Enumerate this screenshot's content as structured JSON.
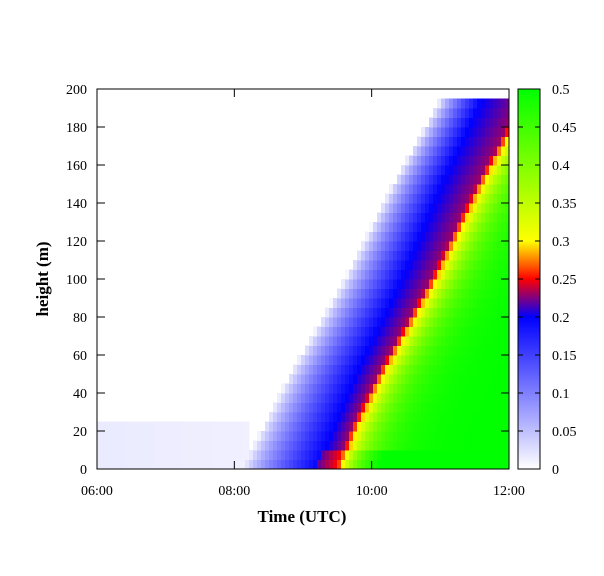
{
  "chart_data": {
    "type": "heatmap",
    "title": "",
    "xlabel": "Time (UTC)",
    "ylabel": "height (m)",
    "x": {
      "range": [
        6,
        12
      ],
      "ticks": [
        6,
        8,
        10,
        12
      ],
      "tick_labels": [
        "06:00",
        "08:00",
        "10:00",
        "12:00"
      ]
    },
    "y": {
      "range": [
        0,
        200
      ],
      "ticks": [
        0,
        20,
        40,
        60,
        80,
        100,
        120,
        140,
        160,
        180,
        200
      ],
      "tick_labels": [
        "0",
        "20",
        "40",
        "60",
        "80",
        "100",
        "120",
        "140",
        "160",
        "180",
        "200"
      ],
      "level_spacing_m": 5,
      "top_level_m": 195
    },
    "colorbar": {
      "range": [
        0,
        0.5
      ],
      "ticks": [
        0,
        0.05,
        0.1,
        0.15,
        0.2,
        0.25,
        0.3,
        0.35,
        0.4,
        0.45,
        0.5
      ],
      "tick_labels": [
        "0",
        "0.05",
        "0.1",
        "0.15",
        "0.2",
        "0.25",
        "0.3",
        "0.35",
        "0.4",
        "0.45",
        "0.5"
      ],
      "stops": [
        {
          "v": 0.0,
          "color": "#ffffff"
        },
        {
          "v": 0.2,
          "color": "#0000ff"
        },
        {
          "v": 0.25,
          "color": "#ff0000"
        },
        {
          "v": 0.3,
          "color": "#ffff00"
        },
        {
          "v": 0.5,
          "color": "#00ff00"
        }
      ]
    },
    "field_description": {
      "front_onset_time_by_height": [
        [
          0,
          8.1
        ],
        [
          50,
          8.8
        ],
        [
          100,
          9.6
        ],
        [
          150,
          10.3
        ],
        [
          195,
          11.0
        ]
      ],
      "mixing_layer_top_m": 195,
      "surface_strong_layer_m": 10,
      "note_values": "values rise from 0 at the front to ~0.2 (blue), cross red near 0.25 a short time later, and reach 0.4-0.5 (green) by 12:00 between 30 and 150 m"
    },
    "grid": false,
    "legend": "colorbar-right"
  }
}
